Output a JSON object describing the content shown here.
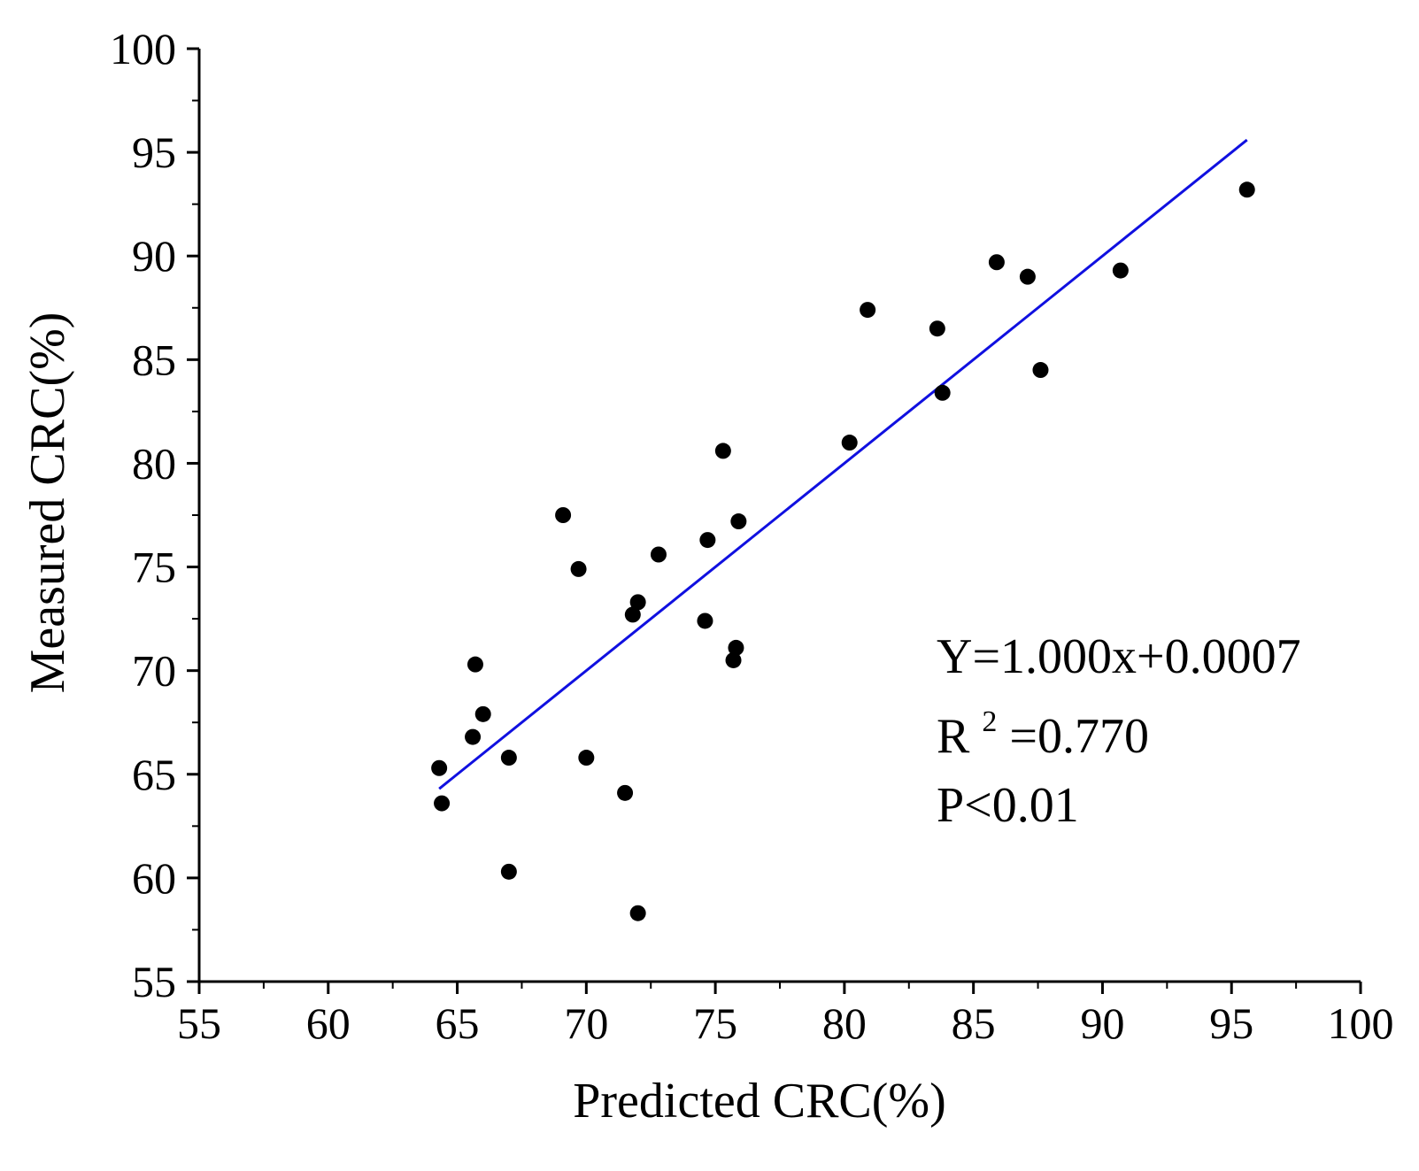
{
  "chart_data": {
    "type": "scatter",
    "title": "",
    "xlabel": "Predicted CRC(%)",
    "ylabel": "Measured CRC(%)",
    "xlim": [
      55,
      100
    ],
    "ylim": [
      55,
      100
    ],
    "xticks": [
      55,
      60,
      65,
      70,
      75,
      80,
      85,
      90,
      95,
      100
    ],
    "yticks": [
      55,
      60,
      65,
      70,
      75,
      80,
      85,
      90,
      95,
      100
    ],
    "grid": false,
    "colors": {
      "points": "#000000",
      "fit_line": "#1010e0",
      "axis": "#000000"
    },
    "series": [
      {
        "name": "samples",
        "points": [
          {
            "x": 64.3,
            "y": 65.3
          },
          {
            "x": 64.4,
            "y": 63.6
          },
          {
            "x": 65.6,
            "y": 66.8
          },
          {
            "x": 65.7,
            "y": 70.3
          },
          {
            "x": 66.0,
            "y": 67.9
          },
          {
            "x": 67.0,
            "y": 65.8
          },
          {
            "x": 67.0,
            "y": 60.3
          },
          {
            "x": 69.1,
            "y": 77.5
          },
          {
            "x": 69.7,
            "y": 74.9
          },
          {
            "x": 70.0,
            "y": 65.8
          },
          {
            "x": 71.5,
            "y": 64.1
          },
          {
            "x": 71.8,
            "y": 72.7
          },
          {
            "x": 72.0,
            "y": 73.3
          },
          {
            "x": 72.0,
            "y": 58.3
          },
          {
            "x": 72.8,
            "y": 75.6
          },
          {
            "x": 74.6,
            "y": 72.4
          },
          {
            "x": 74.7,
            "y": 76.3
          },
          {
            "x": 75.3,
            "y": 80.6
          },
          {
            "x": 75.7,
            "y": 70.5
          },
          {
            "x": 75.8,
            "y": 71.1
          },
          {
            "x": 75.9,
            "y": 77.2
          },
          {
            "x": 80.2,
            "y": 81.0
          },
          {
            "x": 80.9,
            "y": 87.4
          },
          {
            "x": 83.6,
            "y": 86.5
          },
          {
            "x": 83.8,
            "y": 83.4
          },
          {
            "x": 85.9,
            "y": 89.7
          },
          {
            "x": 87.1,
            "y": 89.0
          },
          {
            "x": 87.6,
            "y": 84.5
          },
          {
            "x": 90.7,
            "y": 89.3
          },
          {
            "x": 95.6,
            "y": 93.2
          }
        ]
      }
    ],
    "fit_line": {
      "slope": 1.0,
      "intercept": 0.0007,
      "x_start": 64.3,
      "x_end": 95.6
    },
    "annotations": {
      "equation": "Y=1.000x+0.0007",
      "r2_prefix": "R",
      "r2_sup": "2",
      "r2_value": "=0.770",
      "p_value": "P<0.01"
    }
  }
}
